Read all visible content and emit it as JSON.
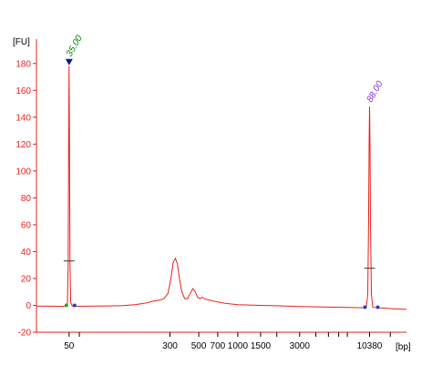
{
  "chart_data": {
    "type": "line",
    "title": "",
    "ylabel": "[FU]",
    "xlabel": "[bp]",
    "ylim": [
      -20,
      190
    ],
    "y_ticks": [
      -20,
      0,
      20,
      40,
      60,
      80,
      100,
      120,
      140,
      160,
      180
    ],
    "x_scale": "log",
    "x_tick_labels": [
      "50",
      "300",
      "500",
      "700",
      "1000",
      "1500",
      "3000",
      "10380"
    ],
    "x_tick_values": [
      50,
      300,
      500,
      700,
      1000,
      1500,
      3000,
      10380
    ],
    "x_minor_tick_values": [
      60,
      2000,
      4000,
      5000,
      6000,
      7000,
      15000
    ],
    "grid": false,
    "colors": {
      "trace": "#e8201a",
      "axis": "#e8201a",
      "lower_marker": "#008000",
      "upper_marker": "#8a2be2",
      "triangle": "#0a1a8a",
      "peak_dot": "#1f3fd6",
      "peak_cross": "#333333"
    },
    "peaks": [
      {
        "label": "35.00",
        "x": 50,
        "height": 178,
        "color": "#008000"
      },
      {
        "label": "88.00",
        "x": 10380,
        "height": 148,
        "color": "#8a2be2"
      }
    ],
    "series": [
      {
        "points": [
          [
            28,
            -0.5
          ],
          [
            35,
            -0.6
          ],
          [
            42,
            -0.7
          ],
          [
            47,
            -0.6
          ],
          [
            48.5,
            0
          ],
          [
            49.2,
            30
          ],
          [
            49.6,
            115
          ],
          [
            50,
            178
          ],
          [
            50.4,
            115
          ],
          [
            50.8,
            30
          ],
          [
            51.5,
            2
          ],
          [
            53,
            -0.5
          ],
          [
            60,
            -0.7
          ],
          [
            80,
            -0.5
          ],
          [
            100,
            -0.4
          ],
          [
            130,
            -0.2
          ],
          [
            160,
            0.5
          ],
          [
            190,
            1.5
          ],
          [
            220,
            3
          ],
          [
            250,
            4
          ],
          [
            270,
            5
          ],
          [
            290,
            9
          ],
          [
            305,
            20
          ],
          [
            318,
            32
          ],
          [
            330,
            35
          ],
          [
            342,
            31
          ],
          [
            355,
            20
          ],
          [
            370,
            10
          ],
          [
            390,
            5
          ],
          [
            410,
            5
          ],
          [
            430,
            9
          ],
          [
            450,
            12.5
          ],
          [
            470,
            10
          ],
          [
            490,
            6
          ],
          [
            510,
            5
          ],
          [
            530,
            6
          ],
          [
            550,
            5
          ],
          [
            600,
            4
          ],
          [
            700,
            2.5
          ],
          [
            800,
            1.5
          ],
          [
            1000,
            0.5
          ],
          [
            1500,
            0
          ],
          [
            2000,
            -0.3
          ],
          [
            3000,
            -0.8
          ],
          [
            5000,
            -1.3
          ],
          [
            7000,
            -1.6
          ],
          [
            9000,
            -1.8
          ],
          [
            9800,
            -1.5
          ],
          [
            10050,
            8
          ],
          [
            10200,
            60
          ],
          [
            10300,
            120
          ],
          [
            10380,
            148
          ],
          [
            10460,
            120
          ],
          [
            10560,
            60
          ],
          [
            10720,
            8
          ],
          [
            11000,
            -1.5
          ],
          [
            13000,
            -2
          ],
          [
            16000,
            -2.5
          ],
          [
            20000,
            -3
          ]
        ]
      }
    ]
  }
}
